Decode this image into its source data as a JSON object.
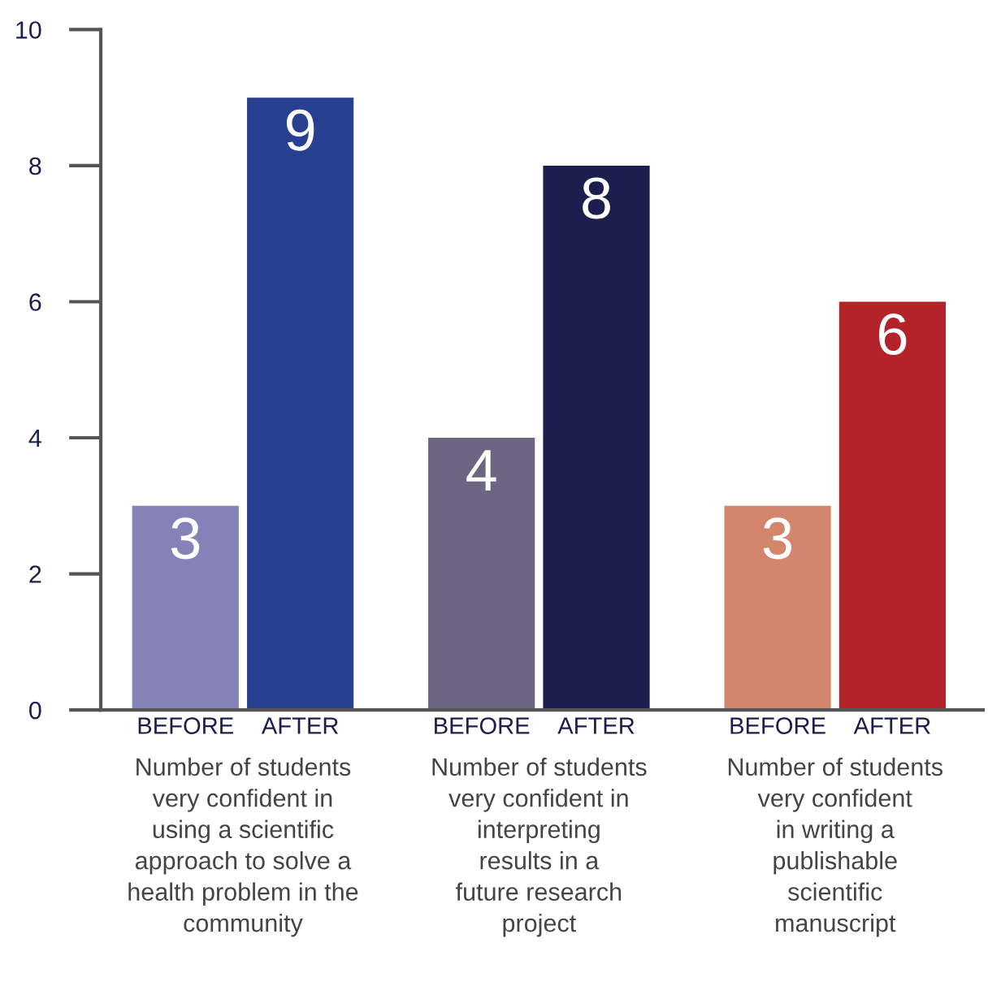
{
  "chart_data": {
    "type": "bar",
    "categories": [
      "Number of students\nvery confident in\nusing a scientific\napproach to solve a\nhealth problem in the\ncommunity",
      "Number of students\nvery confident in\ninterpreting\nresults in a\nfuture research\nproject",
      "Number of students\nvery confident\nin writing a\npublishable\nscientific\nmanuscript"
    ],
    "series": [
      {
        "name": "BEFORE",
        "colors": [
          "#8582b8",
          "#6c6682",
          "#d4866c"
        ],
        "values": [
          3,
          4,
          3
        ]
      },
      {
        "name": "AFTER",
        "colors": [
          "#27408f",
          "#1c1f4d",
          "#b5232a"
        ],
        "values": [
          9,
          8,
          6
        ]
      }
    ],
    "ylim": [
      0,
      10
    ],
    "yticks": [
      0,
      2,
      4,
      6,
      8,
      10
    ],
    "data_labels": true,
    "grid": false,
    "legend": false
  }
}
